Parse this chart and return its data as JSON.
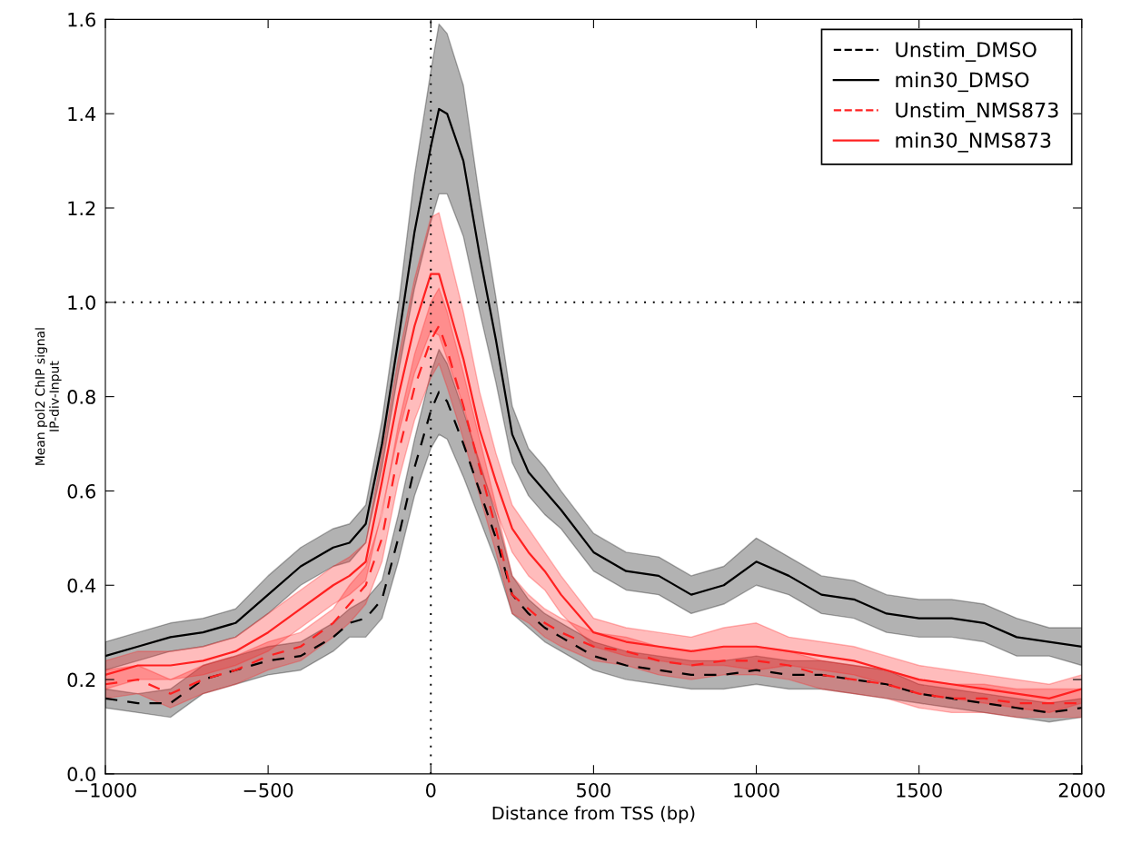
{
  "chart_data": {
    "type": "line",
    "xlabel": "Distance from TSS (bp)",
    "ylabel": "Mean pol2 ChIP signal\nIP-div-Input",
    "x": [
      -1000,
      -900,
      -800,
      -700,
      -600,
      -500,
      -400,
      -300,
      -250,
      -200,
      -150,
      -100,
      -50,
      0,
      25,
      50,
      100,
      150,
      200,
      250,
      300,
      350,
      400,
      500,
      600,
      700,
      800,
      900,
      1000,
      1100,
      1200,
      1300,
      1400,
      1500,
      1600,
      1700,
      1800,
      1900,
      2000
    ],
    "xlim": [
      -1000,
      2000
    ],
    "xticks": [
      {
        "value": -1000,
        "label": "−1000"
      },
      {
        "value": -500,
        "label": "−500"
      },
      0,
      500,
      1000,
      1500,
      2000
    ],
    "ylim": [
      0.0,
      1.6
    ],
    "yticks": [
      {
        "value": 0,
        "label": "0.0"
      },
      0.2,
      0.4,
      0.6,
      0.8,
      {
        "value": 1,
        "label": "1.0"
      },
      1.2,
      1.4,
      1.6
    ],
    "grid": false,
    "legend": "top right",
    "marker": "none",
    "ref_lines": [
      {
        "axis": "x",
        "value": 0,
        "color": "#000000",
        "line_style": "dotted"
      },
      {
        "axis": "y",
        "value": 1.0,
        "color": "#000000",
        "line_style": "dotted"
      }
    ],
    "series": [
      {
        "name": "Unstim_DMSO",
        "color": "#000000",
        "line_style": "dashed",
        "values": [
          0.16,
          0.15,
          0.15,
          0.2,
          0.22,
          0.24,
          0.25,
          0.29,
          0.32,
          0.33,
          0.37,
          0.5,
          0.65,
          0.77,
          0.81,
          0.79,
          0.7,
          0.6,
          0.5,
          0.38,
          0.34,
          0.31,
          0.29,
          0.25,
          0.23,
          0.22,
          0.21,
          0.21,
          0.22,
          0.21,
          0.21,
          0.2,
          0.19,
          0.17,
          0.16,
          0.15,
          0.14,
          0.13,
          0.14
        ],
        "lower": [
          0.14,
          0.13,
          0.12,
          0.17,
          0.19,
          0.21,
          0.22,
          0.26,
          0.29,
          0.29,
          0.33,
          0.45,
          0.59,
          0.69,
          0.72,
          0.71,
          0.63,
          0.54,
          0.45,
          0.34,
          0.31,
          0.28,
          0.26,
          0.22,
          0.2,
          0.19,
          0.18,
          0.18,
          0.19,
          0.18,
          0.18,
          0.17,
          0.16,
          0.15,
          0.14,
          0.13,
          0.12,
          0.11,
          0.12
        ],
        "upper": [
          0.18,
          0.17,
          0.18,
          0.23,
          0.25,
          0.27,
          0.28,
          0.32,
          0.35,
          0.37,
          0.41,
          0.55,
          0.71,
          0.85,
          0.9,
          0.87,
          0.77,
          0.66,
          0.55,
          0.42,
          0.37,
          0.34,
          0.32,
          0.28,
          0.26,
          0.25,
          0.24,
          0.24,
          0.25,
          0.24,
          0.24,
          0.23,
          0.22,
          0.19,
          0.18,
          0.17,
          0.16,
          0.15,
          0.16
        ]
      },
      {
        "name": "min30_DMSO",
        "color": "#000000",
        "line_style": "solid",
        "values": [
          0.25,
          0.27,
          0.29,
          0.3,
          0.32,
          0.38,
          0.44,
          0.48,
          0.49,
          0.53,
          0.7,
          0.92,
          1.15,
          1.33,
          1.41,
          1.4,
          1.3,
          1.1,
          0.92,
          0.72,
          0.64,
          0.6,
          0.56,
          0.47,
          0.43,
          0.42,
          0.38,
          0.4,
          0.45,
          0.42,
          0.38,
          0.37,
          0.34,
          0.33,
          0.33,
          0.32,
          0.29,
          0.28,
          0.27
        ],
        "lower": [
          0.22,
          0.24,
          0.26,
          0.27,
          0.29,
          0.34,
          0.4,
          0.44,
          0.45,
          0.49,
          0.65,
          0.85,
          1.03,
          1.17,
          1.23,
          1.23,
          1.14,
          0.98,
          0.83,
          0.66,
          0.59,
          0.55,
          0.52,
          0.43,
          0.39,
          0.38,
          0.34,
          0.36,
          0.4,
          0.38,
          0.34,
          0.33,
          0.3,
          0.29,
          0.29,
          0.28,
          0.25,
          0.25,
          0.23
        ],
        "upper": [
          0.28,
          0.3,
          0.32,
          0.33,
          0.35,
          0.42,
          0.48,
          0.52,
          0.53,
          0.57,
          0.75,
          0.99,
          1.27,
          1.49,
          1.59,
          1.57,
          1.46,
          1.22,
          1.01,
          0.78,
          0.69,
          0.65,
          0.6,
          0.51,
          0.47,
          0.46,
          0.42,
          0.44,
          0.5,
          0.46,
          0.42,
          0.41,
          0.38,
          0.37,
          0.37,
          0.36,
          0.33,
          0.31,
          0.31
        ]
      },
      {
        "name": "Unstim_NMS873",
        "color": "#ff2020",
        "line_style": "dashed",
        "values": [
          0.19,
          0.2,
          0.17,
          0.2,
          0.22,
          0.25,
          0.27,
          0.32,
          0.36,
          0.4,
          0.5,
          0.68,
          0.82,
          0.92,
          0.95,
          0.9,
          0.78,
          0.65,
          0.52,
          0.38,
          0.35,
          0.32,
          0.3,
          0.27,
          0.26,
          0.24,
          0.23,
          0.24,
          0.24,
          0.23,
          0.21,
          0.2,
          0.19,
          0.17,
          0.16,
          0.16,
          0.15,
          0.15,
          0.15
        ],
        "lower": [
          0.16,
          0.17,
          0.14,
          0.17,
          0.19,
          0.22,
          0.24,
          0.29,
          0.32,
          0.36,
          0.45,
          0.62,
          0.75,
          0.84,
          0.87,
          0.82,
          0.71,
          0.59,
          0.47,
          0.34,
          0.32,
          0.29,
          0.27,
          0.24,
          0.23,
          0.21,
          0.2,
          0.21,
          0.21,
          0.2,
          0.18,
          0.17,
          0.16,
          0.14,
          0.13,
          0.13,
          0.12,
          0.12,
          0.12
        ],
        "upper": [
          0.22,
          0.23,
          0.2,
          0.23,
          0.25,
          0.28,
          0.3,
          0.35,
          0.4,
          0.44,
          0.55,
          0.74,
          0.89,
          1.0,
          1.03,
          0.98,
          0.85,
          0.71,
          0.57,
          0.42,
          0.38,
          0.35,
          0.33,
          0.3,
          0.29,
          0.27,
          0.26,
          0.27,
          0.27,
          0.26,
          0.24,
          0.23,
          0.22,
          0.2,
          0.19,
          0.19,
          0.18,
          0.18,
          0.18
        ]
      },
      {
        "name": "min30_NMS873",
        "color": "#ff2020",
        "line_style": "solid",
        "values": [
          0.21,
          0.23,
          0.23,
          0.24,
          0.26,
          0.3,
          0.35,
          0.4,
          0.42,
          0.45,
          0.62,
          0.8,
          0.95,
          1.06,
          1.06,
          1.0,
          0.88,
          0.73,
          0.62,
          0.52,
          0.47,
          0.43,
          0.38,
          0.3,
          0.28,
          0.27,
          0.26,
          0.27,
          0.27,
          0.26,
          0.25,
          0.24,
          0.22,
          0.2,
          0.19,
          0.18,
          0.17,
          0.16,
          0.18
        ],
        "lower": [
          0.18,
          0.2,
          0.2,
          0.21,
          0.23,
          0.26,
          0.31,
          0.36,
          0.38,
          0.41,
          0.56,
          0.72,
          0.85,
          0.94,
          0.93,
          0.88,
          0.78,
          0.65,
          0.56,
          0.47,
          0.42,
          0.39,
          0.34,
          0.27,
          0.25,
          0.24,
          0.23,
          0.23,
          0.22,
          0.23,
          0.22,
          0.21,
          0.19,
          0.17,
          0.16,
          0.15,
          0.14,
          0.13,
          0.15
        ],
        "upper": [
          0.24,
          0.26,
          0.26,
          0.27,
          0.29,
          0.34,
          0.39,
          0.44,
          0.46,
          0.49,
          0.68,
          0.88,
          1.05,
          1.18,
          1.19,
          1.12,
          0.98,
          0.81,
          0.68,
          0.57,
          0.52,
          0.47,
          0.42,
          0.33,
          0.31,
          0.3,
          0.29,
          0.31,
          0.32,
          0.29,
          0.28,
          0.27,
          0.25,
          0.23,
          0.22,
          0.21,
          0.2,
          0.19,
          0.21
        ]
      }
    ]
  }
}
